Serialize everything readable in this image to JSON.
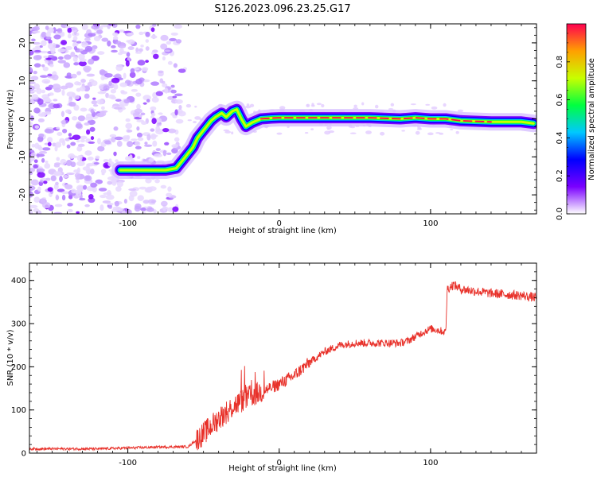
{
  "title": "S126.2023.096.23.25.G17",
  "chart_data": [
    {
      "type": "heatmap",
      "xlabel": "Height of straight line (km)",
      "ylabel": "Frequency (Hz)",
      "xlim": [
        -165,
        170
      ],
      "ylim": [
        -25,
        25
      ],
      "x_ticks": [
        -100,
        0,
        100
      ],
      "y_ticks": [
        -20,
        -10,
        0,
        10,
        20
      ],
      "ridge": {
        "x": [
          -105,
          -95,
          -85,
          -75,
          -68,
          -63,
          -60,
          -57,
          -54,
          -51,
          -48,
          -45,
          -42,
          -38,
          -35,
          -31,
          -28,
          -25,
          -22,
          -18,
          -12,
          -5,
          0,
          20,
          40,
          60,
          80,
          90,
          100,
          110,
          120,
          140,
          160,
          168
        ],
        "y": [
          -13.5,
          -13.5,
          -13.5,
          -13.5,
          -13,
          -10.5,
          -9,
          -7.5,
          -5,
          -3.5,
          -2,
          -0.5,
          0.5,
          1.5,
          0.5,
          2,
          2.5,
          0,
          -2,
          -1,
          0,
          0.2,
          0.3,
          0.3,
          0.3,
          0.3,
          0,
          0.3,
          0,
          0,
          -0.5,
          -0.8,
          -0.8,
          -1.2
        ]
      },
      "noise_region_x": [
        -165,
        -62
      ],
      "colorbar": {
        "label": "Normalized spectral amplitude",
        "ticks": [
          0.0,
          0.2,
          0.4,
          0.6,
          0.8
        ],
        "range": [
          0,
          1
        ],
        "colors": [
          "#ffffff",
          "#7a00ff",
          "#0000ff",
          "#00c8ff",
          "#00ff40",
          "#c8ff00",
          "#ffa000",
          "#ff0050"
        ]
      }
    },
    {
      "type": "line",
      "xlabel": "Height of straight line (km)",
      "ylabel": "SNR (10 * v/v)",
      "xlim": [
        -165,
        170
      ],
      "ylim": [
        0,
        440
      ],
      "x_ticks": [
        -100,
        0,
        100
      ],
      "y_ticks": [
        0,
        100,
        200,
        300,
        400
      ],
      "color": "#e8312a",
      "trend": {
        "x": [
          -165,
          -120,
          -80,
          -60,
          -55,
          -50,
          -40,
          -30,
          -20,
          -10,
          0,
          10,
          20,
          30,
          40,
          50,
          60,
          70,
          80,
          85,
          90,
          95,
          100,
          105,
          110,
          111,
          115,
          120,
          140,
          160,
          170
        ],
        "y": [
          10,
          10,
          14,
          15,
          30,
          45,
          80,
          110,
          130,
          145,
          160,
          180,
          210,
          235,
          250,
          255,
          255,
          255,
          255,
          260,
          270,
          280,
          288,
          285,
          280,
          380,
          390,
          380,
          370,
          365,
          360
        ]
      }
    }
  ]
}
